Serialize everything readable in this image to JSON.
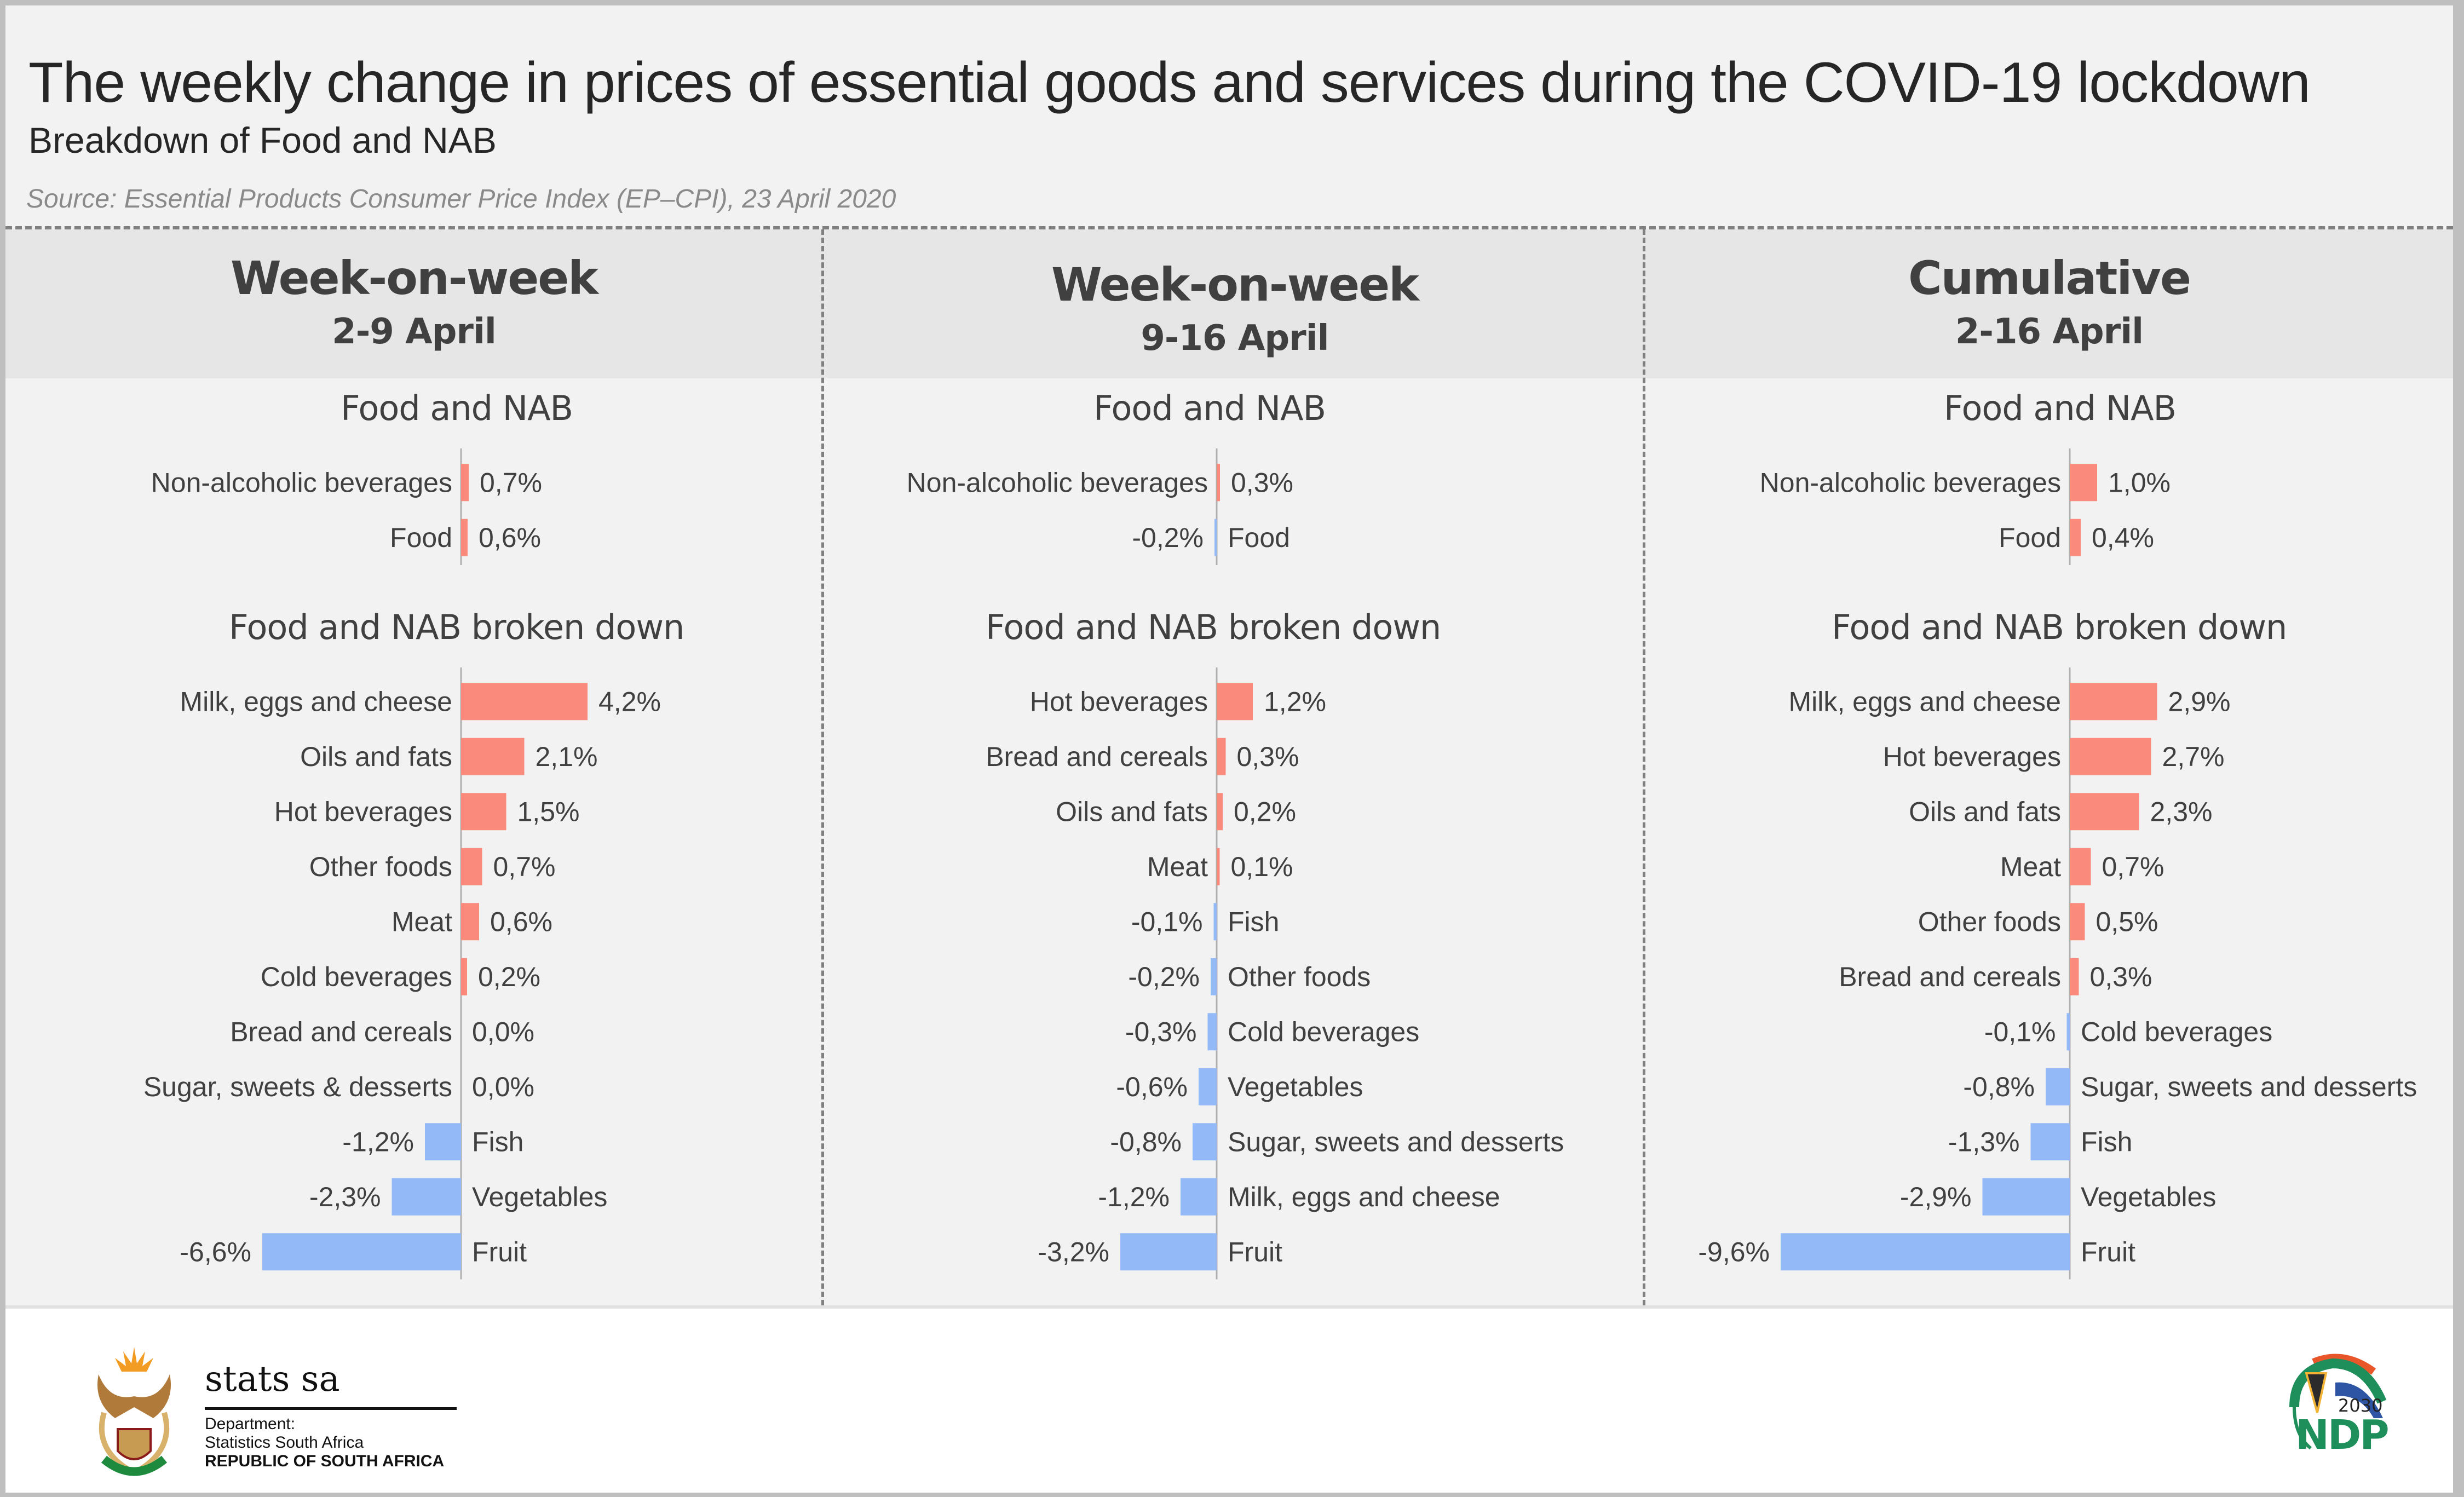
{
  "header": {
    "title": "The weekly change in prices of essential goods and services during the COVID-19 lockdown",
    "subtitle": "Breakdown of Food and NAB",
    "source": "Source: Essential Products Consumer Price Index (EP–CPI), 23 April 2020"
  },
  "colors": {
    "positive": "#fa8a7c",
    "negative": "#93baf7",
    "axis": "#b0b0b0",
    "text": "#404040"
  },
  "panels": [
    {
      "heading": "Week-on-week",
      "period": "2-9 April"
    },
    {
      "heading": "Week-on-week",
      "period": "9-16 April"
    },
    {
      "heading": "Cumulative",
      "period": "2-16 April"
    }
  ],
  "footer": {
    "statssa_name": "stats sa",
    "department_label": "Department:",
    "department_name": "Statistics South Africa",
    "republic": "REPUBLIC OF SOUTH AFRICA",
    "ndp_year": "2030",
    "ndp_name": "NDP"
  },
  "chart_data": [
    {
      "type": "bar",
      "orientation": "horizontal",
      "panel": "Week-on-week 2-9 April",
      "title": "Food and NAB",
      "unit": "%",
      "categories": [
        "Non-alcoholic beverages",
        "Food"
      ],
      "values": [
        0.7,
        0.6
      ],
      "labels": [
        "0,7%",
        "0,6%"
      ]
    },
    {
      "type": "bar",
      "orientation": "horizontal",
      "panel": "Week-on-week 2-9 April",
      "title": "Food and NAB broken down",
      "unit": "%",
      "categories": [
        "Milk, eggs and cheese",
        "Oils and fats",
        "Hot beverages",
        "Other foods",
        "Meat",
        "Cold beverages",
        "Bread and cereals",
        "Sugar, sweets & desserts",
        "Fish",
        "Vegetables",
        "Fruit"
      ],
      "values": [
        4.2,
        2.1,
        1.5,
        0.7,
        0.6,
        0.2,
        0.0,
        0.0,
        -1.2,
        -2.3,
        -6.6
      ],
      "labels": [
        "4,2%",
        "2,1%",
        "1,5%",
        "0,7%",
        "0,6%",
        "0,2%",
        "0,0%",
        "0,0%",
        "-1,2%",
        "-2,3%",
        "-6,6%"
      ]
    },
    {
      "type": "bar",
      "orientation": "horizontal",
      "panel": "Week-on-week 9-16 April",
      "title": "Food and NAB",
      "unit": "%",
      "categories": [
        "Non-alcoholic beverages",
        "Food"
      ],
      "values": [
        0.3,
        -0.2
      ],
      "labels": [
        "0,3%",
        "-0,2%"
      ]
    },
    {
      "type": "bar",
      "orientation": "horizontal",
      "panel": "Week-on-week 9-16 April",
      "title": "Food and NAB broken down",
      "unit": "%",
      "categories": [
        "Hot beverages",
        "Bread and cereals",
        "Oils and fats",
        "Meat",
        "Fish",
        "Other foods",
        "Cold beverages",
        "Vegetables",
        "Sugar, sweets and desserts",
        "Milk, eggs and cheese",
        "Fruit"
      ],
      "values": [
        1.2,
        0.3,
        0.2,
        0.1,
        -0.1,
        -0.2,
        -0.3,
        -0.6,
        -0.8,
        -1.2,
        -3.2
      ],
      "labels": [
        "1,2%",
        "0,3%",
        "0,2%",
        "0,1%",
        "-0,1%",
        "-0,2%",
        "-0,3%",
        "-0,6%",
        "-0,8%",
        "-1,2%",
        "-3,2%"
      ]
    },
    {
      "type": "bar",
      "orientation": "horizontal",
      "panel": "Cumulative 2-16 April",
      "title": "Food and NAB",
      "unit": "%",
      "categories": [
        "Non-alcoholic beverages",
        "Food"
      ],
      "values": [
        1.0,
        0.4
      ],
      "labels": [
        "1,0%",
        "0,4%"
      ]
    },
    {
      "type": "bar",
      "orientation": "horizontal",
      "panel": "Cumulative 2-16 April",
      "title": "Food and NAB broken down",
      "unit": "%",
      "categories": [
        "Milk, eggs and cheese",
        "Hot beverages",
        "Oils and fats",
        "Meat",
        "Other foods",
        "Bread and cereals",
        "Cold beverages",
        "Sugar, sweets and desserts",
        "Fish",
        "Vegetables",
        "Fruit"
      ],
      "values": [
        2.9,
        2.7,
        2.3,
        0.7,
        0.5,
        0.3,
        -0.1,
        -0.8,
        -1.3,
        -2.9,
        -9.6
      ],
      "labels": [
        "2,9%",
        "2,7%",
        "2,3%",
        "0,7%",
        "0,5%",
        "0,3%",
        "-0,1%",
        "-0,8%",
        "-1,3%",
        "-2,9%",
        "-9,6%"
      ]
    }
  ]
}
